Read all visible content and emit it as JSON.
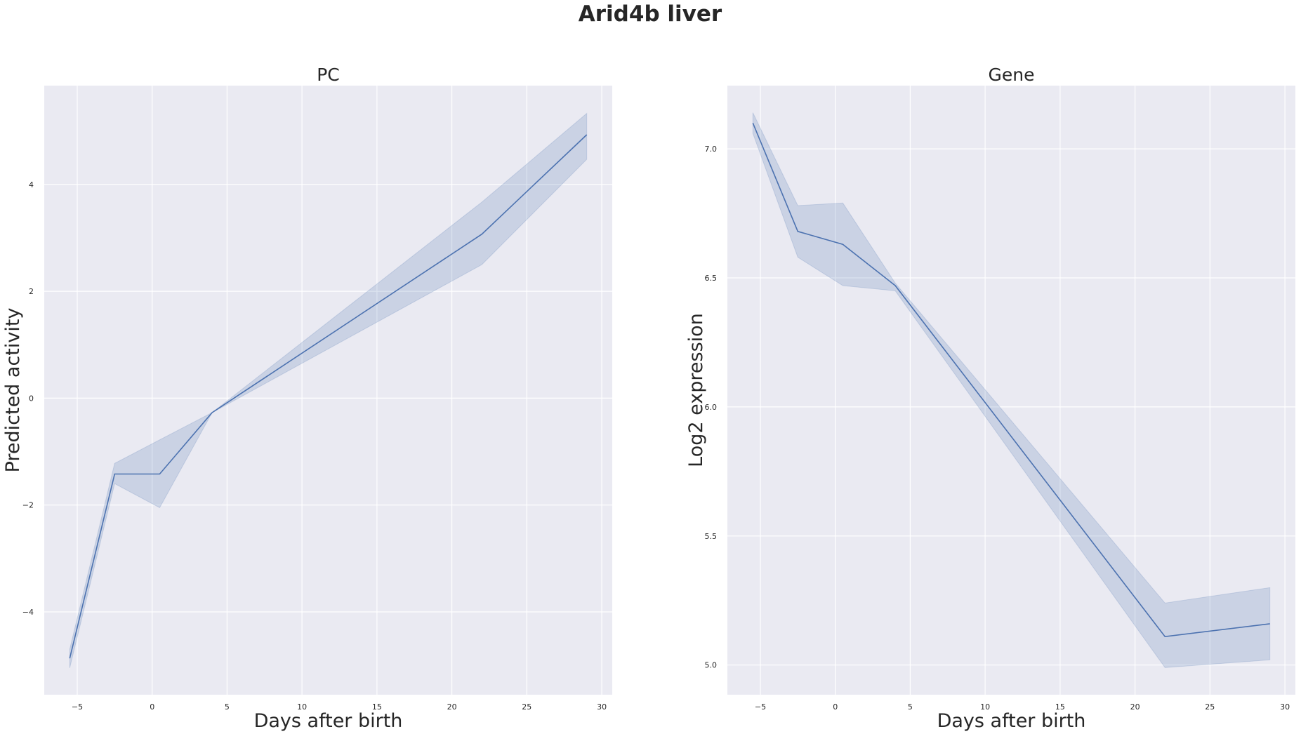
{
  "title": "Arid4b liver",
  "colors": {
    "background": "#eaeaf2",
    "grid": "#ffffff",
    "line": "#4c72b0",
    "text": "#262626"
  },
  "chart_data": [
    {
      "type": "line",
      "title": "PC",
      "xlabel": "Days after birth",
      "ylabel": "Predicted activity",
      "xlim": [
        -7.2,
        30.7
      ],
      "ylim": [
        -5.55,
        5.85
      ],
      "xticks": [
        -5,
        0,
        5,
        10,
        15,
        20,
        25,
        30
      ],
      "xtick_labels": [
        "−5",
        "0",
        "5",
        "10",
        "15",
        "20",
        "25",
        "30"
      ],
      "yticks": [
        -4,
        -2,
        0,
        2,
        4
      ],
      "ytick_labels": [
        "−4",
        "−2",
        "0",
        "2",
        "4"
      ],
      "grid": true,
      "series": [
        {
          "x": [
            -5.5,
            -2.5,
            0.5,
            4,
            22,
            29
          ],
          "y": [
            -4.87,
            -1.42,
            -1.42,
            -0.27,
            3.07,
            4.93
          ],
          "ci_lower": [
            -5.05,
            -1.6,
            -2.05,
            -0.27,
            2.5,
            4.47
          ],
          "ci_upper": [
            -4.7,
            -1.22,
            -0.78,
            -0.27,
            3.67,
            5.33
          ]
        }
      ]
    },
    {
      "type": "line",
      "title": "Gene",
      "xlabel": "Days after birth",
      "ylabel": "Log2 expression",
      "xlim": [
        -7.2,
        30.7
      ],
      "ylim": [
        4.885,
        7.245
      ],
      "xticks": [
        -5,
        0,
        5,
        10,
        15,
        20,
        25,
        30
      ],
      "xtick_labels": [
        "−5",
        "0",
        "5",
        "10",
        "15",
        "20",
        "25",
        "30"
      ],
      "yticks": [
        5.0,
        5.5,
        6.0,
        6.5,
        7.0
      ],
      "ytick_labels": [
        "5.0",
        "5.5",
        "6.0",
        "6.5",
        "7.0"
      ],
      "grid": true,
      "series": [
        {
          "x": [
            -5.5,
            -2.5,
            0.5,
            4,
            22,
            29
          ],
          "y": [
            7.1,
            6.68,
            6.63,
            6.47,
            5.11,
            5.16
          ],
          "ci_lower": [
            7.06,
            6.58,
            6.47,
            6.45,
            4.99,
            5.02
          ],
          "ci_upper": [
            7.14,
            6.78,
            6.79,
            6.48,
            5.24,
            5.3
          ]
        }
      ]
    }
  ]
}
